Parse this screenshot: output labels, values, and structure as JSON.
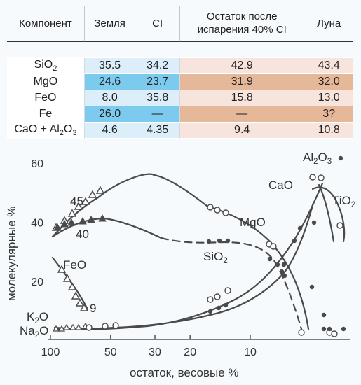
{
  "table": {
    "headers": [
      "Компонент",
      "Земля",
      "CI",
      "Остаток после испарения 40% CI",
      "Луна"
    ],
    "rows": [
      {
        "component": [
          "SiO",
          "2",
          ""
        ],
        "values": [
          "35.5",
          "34.2",
          "42.9",
          "43.4"
        ],
        "shade": "light"
      },
      {
        "component": [
          "MgO"
        ],
        "values": [
          "24.6",
          "23.7",
          "31.9",
          "32.0"
        ],
        "shade": "dark"
      },
      {
        "component": [
          "FeO"
        ],
        "values": [
          "8.0",
          "35.8",
          "15.8",
          "13.0"
        ],
        "shade": "light"
      },
      {
        "component": [
          "Fe"
        ],
        "values": [
          "26.0",
          "—",
          "—",
          "3?"
        ],
        "shade": "dark"
      },
      {
        "component": [
          "CaO + Al",
          "2",
          "O",
          "3",
          ""
        ],
        "values": [
          "4.6",
          "4.35",
          "9.4",
          "10.8"
        ],
        "shade": "light"
      }
    ],
    "colors": {
      "blue_light": "#dbeefa",
      "blue_dark": "#7ccbef",
      "peach_light": "#f7e4dc",
      "peach_dark": "#e6b89a",
      "first_col": "#ffffff"
    }
  },
  "chart_data": {
    "type": "line",
    "xlabel": "остаток, весовые %",
    "ylabel": "молекулярные %",
    "x_ticks": [
      100,
      50,
      30,
      20,
      10
    ],
    "y_ticks": [
      20,
      40,
      60
    ],
    "xlim": [
      100,
      0
    ],
    "x_scale": "log",
    "ylim": [
      0,
      62
    ],
    "series_labels": [
      {
        "parts": [
          "Al",
          "2",
          "O",
          "3",
          ""
        ]
      },
      {
        "parts": [
          "CaO"
        ]
      },
      {
        "parts": [
          "TiO",
          "2",
          ""
        ]
      },
      {
        "parts": [
          "MgO"
        ]
      },
      {
        "parts": [
          "SiO",
          "2",
          ""
        ]
      },
      {
        "parts": [
          "FeO"
        ]
      },
      {
        "parts": [
          "K",
          "2",
          "O"
        ]
      },
      {
        "parts": [
          "Na",
          "2",
          "O"
        ]
      }
    ],
    "annotations": [
      "45",
      "40",
      "9"
    ],
    "colors": {
      "line": "#4a4a4a",
      "axis": "#555555",
      "text": "#333333"
    }
  }
}
